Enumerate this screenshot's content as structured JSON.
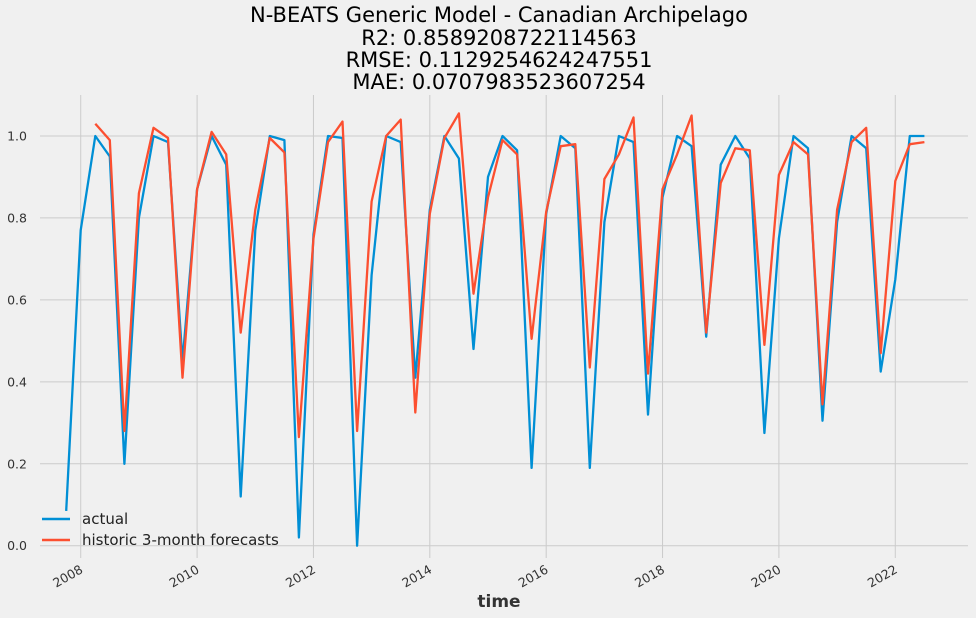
{
  "chart_data": {
    "type": "line",
    "title": "N-BEATS Generic Model - Canadian Archipelago",
    "subtitle_lines": [
      "R2: 0.8589208722114563",
      "RMSE: 0.1129254624247551",
      "MAE: 0.0707983523607254"
    ],
    "xlabel": "time",
    "ylabel": "",
    "xlim": [
      2007.3,
      2023.25
    ],
    "ylim": [
      -0.03,
      1.1
    ],
    "x_ticks": [
      "2008",
      "2010",
      "2012",
      "2014",
      "2016",
      "2018",
      "2020",
      "2022"
    ],
    "y_ticks": [
      "0.0",
      "0.2",
      "0.4",
      "0.6",
      "0.8",
      "1.0"
    ],
    "grid": true,
    "legend_position": "lower-left",
    "colors": {
      "actual": "#008fd5",
      "forecast": "#fc4f30",
      "background": "#f0f0f0",
      "grid": "#cbcbcb"
    },
    "series": [
      {
        "name": "actual",
        "x": [
          2007.75,
          2008.0,
          2008.25,
          2008.5,
          2008.75,
          2009.0,
          2009.25,
          2009.5,
          2009.75,
          2010.0,
          2010.25,
          2010.5,
          2010.75,
          2011.0,
          2011.25,
          2011.5,
          2011.75,
          2012.0,
          2012.25,
          2012.5,
          2012.75,
          2013.0,
          2013.25,
          2013.5,
          2013.75,
          2014.0,
          2014.25,
          2014.5,
          2014.75,
          2015.0,
          2015.25,
          2015.5,
          2015.75,
          2016.0,
          2016.25,
          2016.5,
          2016.75,
          2017.0,
          2017.25,
          2017.5,
          2017.75,
          2018.0,
          2018.25,
          2018.5,
          2018.75,
          2019.0,
          2019.25,
          2019.5,
          2019.75,
          2020.0,
          2020.25,
          2020.5,
          2020.75,
          2021.0,
          2021.25,
          2021.5,
          2021.75,
          2022.0,
          2022.25,
          2022.5
        ],
        "y": [
          0.085,
          0.77,
          1.0,
          0.95,
          0.2,
          0.8,
          1.0,
          0.985,
          0.45,
          0.87,
          1.0,
          0.93,
          0.12,
          0.77,
          1.0,
          0.99,
          0.02,
          0.76,
          1.0,
          0.995,
          0.0,
          0.66,
          1.0,
          0.985,
          0.41,
          0.82,
          1.0,
          0.945,
          0.48,
          0.9,
          1.0,
          0.965,
          0.19,
          0.81,
          1.0,
          0.97,
          0.19,
          0.79,
          1.0,
          0.985,
          0.32,
          0.85,
          1.0,
          0.975,
          0.51,
          0.93,
          1.0,
          0.945,
          0.275,
          0.75,
          1.0,
          0.97,
          0.305,
          0.79,
          1.0,
          0.97,
          0.425,
          0.65,
          1.0,
          1.0
        ]
      },
      {
        "name": "historic 3-month forecasts",
        "x": [
          2008.25,
          2008.5,
          2008.75,
          2009.0,
          2009.25,
          2009.5,
          2009.75,
          2010.0,
          2010.25,
          2010.5,
          2010.75,
          2011.0,
          2011.25,
          2011.5,
          2011.75,
          2012.0,
          2012.25,
          2012.5,
          2012.75,
          2013.0,
          2013.25,
          2013.5,
          2013.75,
          2014.0,
          2014.25,
          2014.5,
          2014.75,
          2015.0,
          2015.25,
          2015.5,
          2015.75,
          2016.0,
          2016.25,
          2016.5,
          2016.75,
          2017.0,
          2017.25,
          2017.5,
          2017.75,
          2018.0,
          2018.25,
          2018.5,
          2018.75,
          2019.0,
          2019.25,
          2019.5,
          2019.75,
          2020.0,
          2020.25,
          2020.5,
          2020.75,
          2021.0,
          2021.25,
          2021.5,
          2021.75,
          2022.0,
          2022.25,
          2022.5
        ],
        "y": [
          1.03,
          0.99,
          0.28,
          0.86,
          1.02,
          0.995,
          0.41,
          0.87,
          1.01,
          0.955,
          0.52,
          0.82,
          0.995,
          0.96,
          0.265,
          0.75,
          0.985,
          1.035,
          0.28,
          0.84,
          1.0,
          1.04,
          0.325,
          0.81,
          0.995,
          1.055,
          0.615,
          0.85,
          0.99,
          0.955,
          0.505,
          0.815,
          0.975,
          0.98,
          0.435,
          0.895,
          0.955,
          1.045,
          0.42,
          0.87,
          0.955,
          1.05,
          0.52,
          0.885,
          0.97,
          0.965,
          0.49,
          0.905,
          0.985,
          0.955,
          0.345,
          0.82,
          0.985,
          1.02,
          0.47,
          0.89,
          0.98,
          0.985
        ]
      }
    ]
  }
}
